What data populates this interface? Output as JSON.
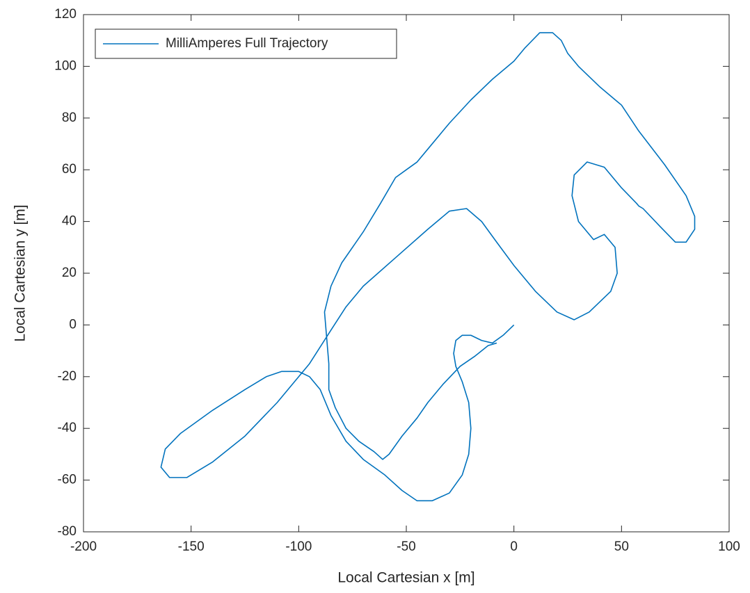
{
  "chart_data": {
    "type": "line",
    "xlabel": "Local Cartesian x [m]",
    "ylabel": "Local Cartesian y [m]",
    "xlim": [
      -200,
      100
    ],
    "ylim": [
      -80,
      120
    ],
    "xticks": [
      -200,
      -150,
      -100,
      -50,
      0,
      50,
      100
    ],
    "yticks": [
      -80,
      -60,
      -40,
      -20,
      0,
      20,
      40,
      60,
      80,
      100,
      120
    ],
    "legend": "upper left",
    "series": [
      {
        "name": "MilliAmperes Full Trajectory",
        "color": "#0072bd",
        "x": [
          0,
          -5,
          -10,
          -15,
          -20,
          -24,
          -27,
          -28,
          -27,
          -24,
          -21,
          -20,
          -21,
          -24,
          -30,
          -38,
          -45,
          -52,
          -60,
          -70,
          -78,
          -85,
          -90,
          -95,
          -100,
          -108,
          -115,
          -125,
          -140,
          -155,
          -162,
          -164,
          -160,
          -152,
          -140,
          -125,
          -110,
          -95,
          -85,
          -78,
          -70,
          -55,
          -40,
          -30,
          -22,
          -15,
          -8,
          0,
          10,
          20,
          28,
          35,
          45,
          48,
          47,
          42,
          37,
          36,
          30,
          27,
          28,
          34,
          42,
          50,
          57,
          58,
          60,
          68,
          75,
          80,
          84,
          84,
          80,
          70,
          58,
          50,
          40,
          30,
          25,
          22,
          18,
          12,
          5,
          0,
          -10,
          -20,
          -30,
          -40,
          -45,
          -50,
          -55,
          -62,
          -70,
          -80,
          -85,
          -88,
          -87,
          -86,
          -86,
          -83,
          -78,
          -72,
          -65,
          -61,
          -58,
          -52,
          -45,
          -40,
          -33,
          -25,
          -18,
          -12,
          -8
        ],
        "values": [
          0,
          -4,
          -7,
          -6,
          -4,
          -4,
          -6,
          -11,
          -16,
          -22,
          -30,
          -40,
          -50,
          -58,
          -65,
          -68,
          -68,
          -64,
          -58,
          -52,
          -45,
          -35,
          -25,
          -20,
          -18,
          -18,
          -20,
          -25,
          -33,
          -42,
          -48,
          -55,
          -59,
          -59,
          -53,
          -43,
          -30,
          -15,
          -2,
          7,
          15,
          26,
          37,
          44,
          45,
          40,
          32,
          23,
          13,
          5,
          2,
          5,
          13,
          20,
          30,
          35,
          33,
          34,
          40,
          50,
          58,
          63,
          61,
          53,
          47,
          46,
          45,
          38,
          32,
          32,
          37,
          42,
          50,
          62,
          75,
          85,
          92,
          100,
          105,
          110,
          113,
          113,
          107,
          102,
          95,
          87,
          78,
          68,
          63,
          60,
          57,
          47,
          36,
          24,
          15,
          5,
          -5,
          -15,
          -25,
          -32,
          -40,
          -45,
          -49,
          -52,
          -50,
          -43,
          -36,
          -30,
          -23,
          -16,
          -12,
          -8,
          -7
        ]
      }
    ]
  }
}
